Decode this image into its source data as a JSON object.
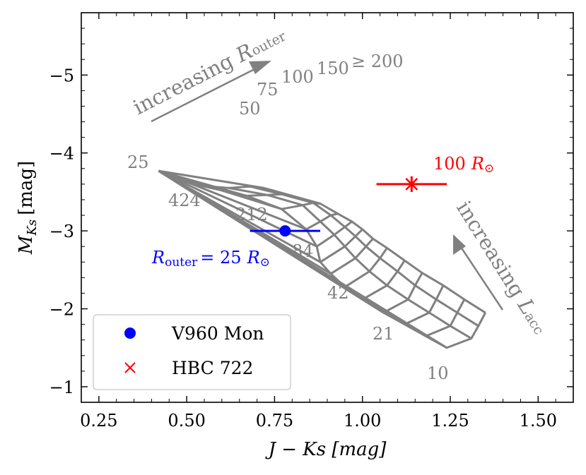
{
  "chart_data": {
    "type": "scatter",
    "title": "",
    "xlabel": "J − Ks [mag]",
    "ylabel": "M_Ks [mag]",
    "ylabel_main": "M",
    "ylabel_sub": "Ks",
    "ylabel_unit": "[mag]",
    "xlim": [
      0.2,
      1.6
    ],
    "ylim": [
      -0.8,
      -5.8
    ],
    "y_inverted": true,
    "x_ticks": [
      0.25,
      0.5,
      0.75,
      1.0,
      1.25,
      1.5
    ],
    "x_tick_labels": [
      "0.25",
      "0.50",
      "0.75",
      "1.00",
      "1.25",
      "1.50"
    ],
    "y_ticks": [
      -1,
      -2,
      -3,
      -4,
      -5
    ],
    "y_tick_labels": [
      "−1",
      "−2",
      "−3",
      "−4",
      "−5"
    ],
    "colors": {
      "grid": "#808080",
      "v960": "#0000ff",
      "hbc": "#ff0000",
      "axis": "#000000"
    },
    "model_grid": {
      "description": "Model grid: outer radius (R_outer) vs accretion luminosity (L_acc)",
      "r_outer_labels": [
        "25",
        "50",
        "75",
        "100",
        "150",
        "≥ 200"
      ],
      "l_acc_labels": [
        "424",
        "212",
        "84",
        "42",
        "21",
        "10"
      ],
      "rows": [
        [
          [
            0.42,
            -3.77
          ],
          [
            0.54,
            -3.58
          ],
          [
            0.62,
            -3.55
          ],
          [
            0.68,
            -3.57
          ],
          [
            0.72,
            -3.55
          ]
        ],
        [
          [
            0.42,
            -3.77
          ],
          [
            0.67,
            -3.45
          ],
          [
            0.73,
            -3.46
          ],
          [
            0.77,
            -3.47
          ],
          [
            0.8,
            -3.45
          ]
        ],
        [
          [
            0.42,
            -3.77
          ],
          [
            0.77,
            -3.28
          ],
          [
            0.83,
            -3.33
          ],
          [
            0.86,
            -3.36
          ],
          [
            0.88,
            -3.35
          ]
        ],
        [
          [
            0.42,
            -3.77
          ],
          [
            0.84,
            -3.02
          ],
          [
            0.88,
            -3.12
          ],
          [
            0.91,
            -3.2
          ],
          [
            0.93,
            -3.22
          ]
        ],
        [
          [
            0.42,
            -3.77
          ],
          [
            0.87,
            -2.8
          ],
          [
            0.92,
            -2.95
          ],
          [
            0.95,
            -3.05
          ],
          [
            0.97,
            -3.12
          ]
        ],
        [
          [
            0.42,
            -3.77
          ],
          [
            0.88,
            -2.6
          ],
          [
            0.95,
            -2.8
          ],
          [
            0.98,
            -2.93
          ],
          [
            1.0,
            -3.02
          ]
        ],
        [
          [
            0.42,
            -3.77
          ],
          [
            0.91,
            -2.45
          ],
          [
            0.98,
            -2.65
          ],
          [
            1.01,
            -2.8
          ],
          [
            1.03,
            -2.9
          ]
        ],
        [
          [
            0.42,
            -3.77
          ],
          [
            0.95,
            -2.28
          ],
          [
            1.02,
            -2.48
          ],
          [
            1.05,
            -2.65
          ],
          [
            1.07,
            -2.78
          ]
        ],
        [
          [
            0.42,
            -3.77
          ],
          [
            1.0,
            -2.12
          ],
          [
            1.07,
            -2.3
          ],
          [
            1.1,
            -2.48
          ],
          [
            1.12,
            -2.62
          ]
        ],
        [
          [
            0.42,
            -3.77
          ],
          [
            1.06,
            -1.95
          ],
          [
            1.13,
            -2.12
          ],
          [
            1.15,
            -2.3
          ],
          [
            1.17,
            -2.46
          ]
        ],
        [
          [
            0.42,
            -3.77
          ],
          [
            1.12,
            -1.8
          ],
          [
            1.19,
            -1.95
          ],
          [
            1.21,
            -2.12
          ],
          [
            1.23,
            -2.3
          ]
        ],
        [
          [
            0.42,
            -3.77
          ],
          [
            1.18,
            -1.65
          ],
          [
            1.25,
            -1.78
          ],
          [
            1.27,
            -1.95
          ],
          [
            1.29,
            -2.12
          ]
        ],
        [
          [
            0.42,
            -3.77
          ],
          [
            1.24,
            -1.5
          ],
          [
            1.31,
            -1.62
          ],
          [
            1.33,
            -1.78
          ],
          [
            1.35,
            -1.95
          ]
        ]
      ]
    },
    "annotations": {
      "r_outer_arrow_label": "increasing",
      "r_outer_arrow_sym": "R",
      "r_outer_arrow_sub": "outer",
      "l_acc_arrow_label": "increasing",
      "l_acc_arrow_sym": "L",
      "l_acc_arrow_sub": "acc",
      "v960_label_sym": "R",
      "v960_label_sub": "outer",
      "v960_label_rest": "= 25",
      "v960_label_unit": "R",
      "v960_label_unit_sub": "⊙",
      "hbc_label_value": "100",
      "hbc_label_unit": "R",
      "hbc_label_unit_sub": "⊙"
    },
    "series": [
      {
        "name": "V960 Mon",
        "marker": "circle",
        "color": "#0000ff",
        "x": 0.78,
        "y": -3.0,
        "xerr": 0.1,
        "yerr": 0.05
      },
      {
        "name": "HBC 722",
        "marker": "x",
        "color": "#ff0000",
        "x": 1.14,
        "y": -3.6,
        "xerr": 0.1,
        "yerr": 0.1
      }
    ],
    "legend": {
      "position": "lower-left",
      "entries": [
        {
          "label": "V960 Mon",
          "marker": "circle",
          "color": "#0000ff"
        },
        {
          "label": "HBC 722",
          "marker": "x",
          "color": "#ff0000"
        }
      ]
    }
  }
}
